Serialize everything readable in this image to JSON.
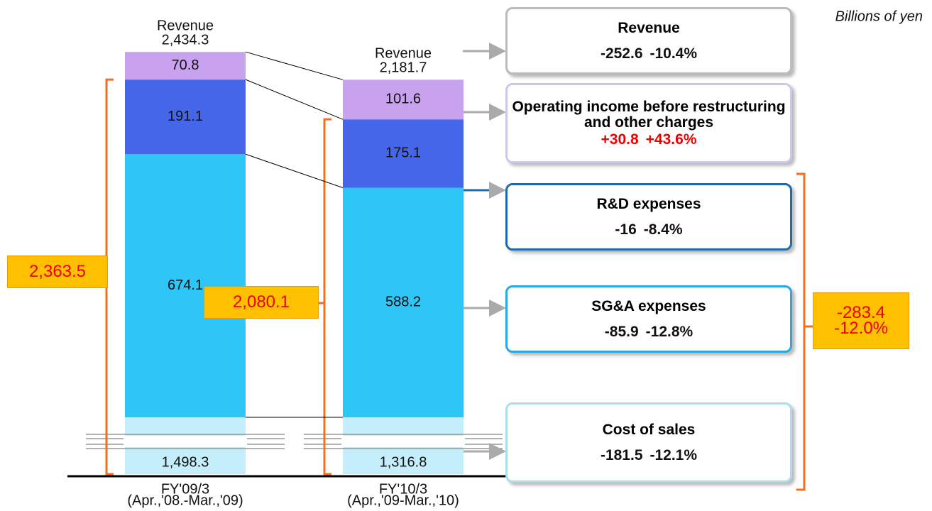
{
  "chart_data": {
    "type": "bar",
    "unit_note": "Billions of yen",
    "categories": [
      "FY'09/3",
      "FY'10/3"
    ],
    "category_sublabels": [
      "(Apr.,'08.-Mar.,'09)",
      "(Apr.,'09-Mar.,'10)"
    ],
    "revenue_label": "Revenue",
    "revenue": [
      2434.3,
      2181.7
    ],
    "revenue_labels": [
      "2,434.3",
      "2,181.7"
    ],
    "revenue_change": -252.6,
    "revenue_change_pct": {
      "value": -10.4,
      "label": "-10.4%"
    },
    "series": [
      {
        "name": "Cost of sales",
        "color": "#c4eefb",
        "border": "#8fd3ee",
        "values": [
          1498.3,
          1316.8
        ],
        "value_labels": [
          "1,498.3",
          "1,316.8"
        ],
        "change": -181.5,
        "change_pct": {
          "value": -12.1,
          "label": "-12.1%"
        }
      },
      {
        "name": "SG&A expenses",
        "color": "#2ec6f6",
        "border": "#22a9e0",
        "values": [
          674.1,
          588.2
        ],
        "change": -85.9,
        "change_pct": {
          "value": -12.8,
          "label": "-12.8%"
        }
      },
      {
        "name": "R&D expenses",
        "color": "#4566e8",
        "border": "#1f6aab",
        "values": [
          191.1,
          175.1
        ],
        "change": -16.0,
        "change_pct": {
          "value": -8.4,
          "label": "-8.4%"
        }
      },
      {
        "name": "Operating income before restructuring and other charges",
        "color": "#c9a2ef",
        "border": "#c8c8f0",
        "values": [
          70.8,
          101.6
        ],
        "change": {
          "value": 30.8,
          "label": "+30.8"
        },
        "change_pct": {
          "value": 43.6,
          "label": "+43.6%"
        }
      }
    ],
    "expenses": [
      2363.5,
      2080.1
    ],
    "expenses_labels": [
      "2,363.5",
      "2,080.1"
    ],
    "expenses_change": {
      "value": -283.4,
      "label": "-283.4"
    },
    "expenses_change_pct": {
      "value": -12.0,
      "label": "-12.0%"
    }
  }
}
